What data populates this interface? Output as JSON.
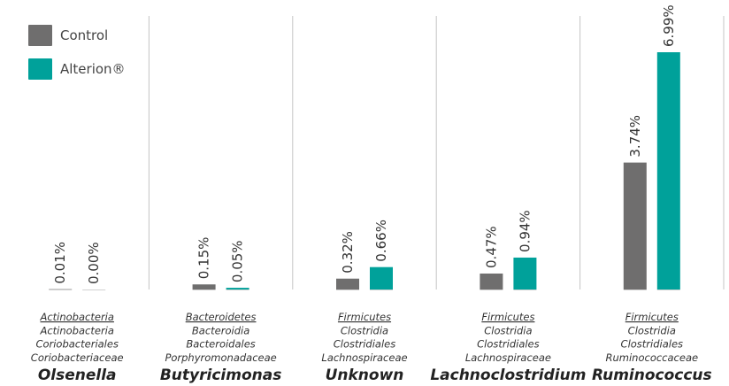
{
  "chart_data": {
    "type": "bar",
    "categories": [
      "Olsenella",
      "Butyricimonas",
      "Unknown",
      "Lachnoclostridium",
      "Ruminococcus"
    ],
    "taxonomy": [
      [
        "Actinobacteria",
        "Actinobacteria",
        "Coriobacteriales",
        "Coriobacteriaceae"
      ],
      [
        "Bacteroidetes",
        "Bacteroidia",
        "Bacteroidales",
        "Porphyromonadaceae"
      ],
      [
        "Firmicutes",
        "Clostridia",
        "Clostridiales",
        "Lachnospiraceae"
      ],
      [
        "Firmicutes",
        "Clostridia",
        "Clostridiales",
        "Lachnospiraceae"
      ],
      [
        "Firmicutes",
        "Clostridia",
        "Clostridiales",
        "Ruminococcaceae"
      ]
    ],
    "series": [
      {
        "name": "Control",
        "color": "#6f6e6e",
        "values": [
          0.01,
          0.15,
          0.32,
          0.47,
          3.74
        ],
        "value_labels": [
          "0.01%",
          "0.15%",
          "0.32%",
          "0.47%",
          "3.74%"
        ]
      },
      {
        "name": "Alterion®",
        "color": "#00a19a",
        "values": [
          0.0,
          0.05,
          0.66,
          0.94,
          6.99
        ],
        "value_labels": [
          "0.00%",
          "0.05%",
          "0.66%",
          "0.94%",
          "6.99%"
        ]
      }
    ],
    "legend": "top-left"
  }
}
